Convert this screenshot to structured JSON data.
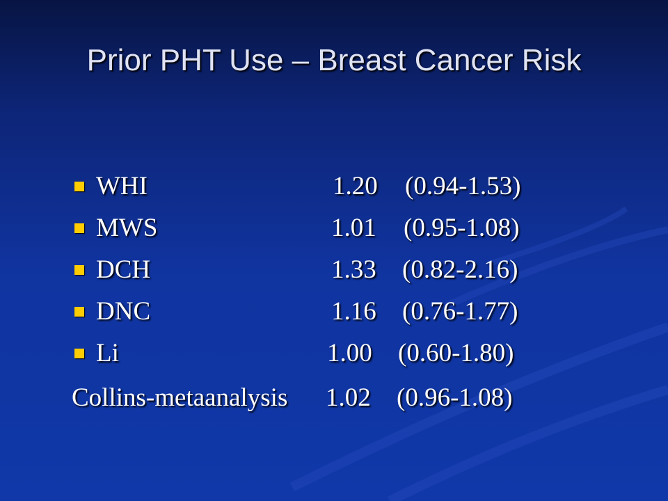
{
  "title": "Prior PHT Use – Breast Cancer Risk",
  "items": [
    {
      "label": "WHI",
      "ratio": "1.20",
      "ci": "(0.94-1.53)"
    },
    {
      "label": "MWS",
      "ratio": "1.01",
      "ci": "(0.95-1.08)"
    },
    {
      "label": "DCH",
      "ratio": "1.33",
      "ci": "(0.82-2.16)"
    },
    {
      "label": "DNC",
      "ratio": "1.16",
      "ci": "(0.76-1.77)"
    },
    {
      "label": "Li",
      "ratio": "1.00",
      "ci": "(0.60-1.80)"
    }
  ],
  "summary": {
    "label": "Collins-metaanalysis",
    "ratio": "1.02",
    "ci": "(0.96-1.08)"
  }
}
